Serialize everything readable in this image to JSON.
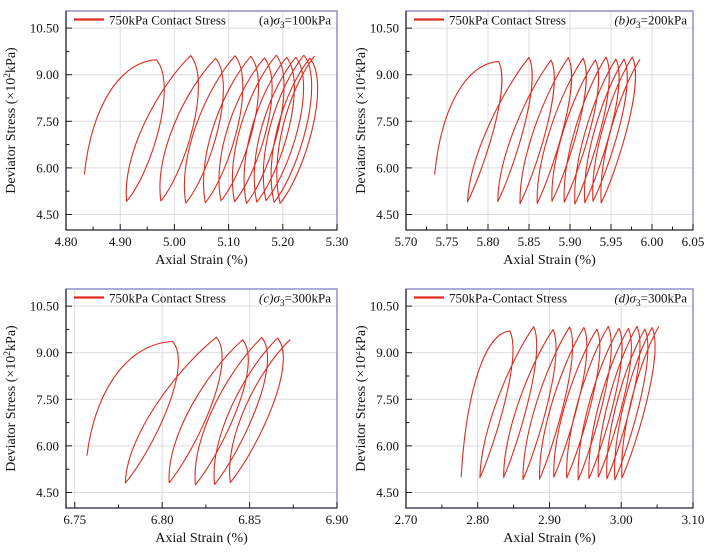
{
  "figure": {
    "background": "#ffffff",
    "colors": {
      "curve": "#dd2b20",
      "frame": "#8888c8",
      "axis": "#1c1c1c",
      "grid": "#dcdcdc",
      "text": "#111111"
    }
  },
  "chart_data": [
    {
      "id": "a",
      "type": "line",
      "legend": "750kPa Contact Stress",
      "annotation": {
        "index": "(a)",
        "index_italic": false,
        "symbol": "σ",
        "subscript": "3",
        "value": "=100kPa"
      },
      "xlabel": "Axial Strain (%)",
      "ylabel": {
        "pre": "Deviator Stress (×10",
        "sup": "2",
        "post": "kPa)"
      },
      "xlim": [
        4.8,
        5.3
      ],
      "xticks": [
        4.8,
        4.9,
        5.0,
        5.1,
        5.2,
        5.3
      ],
      "ylim": [
        4.0,
        11.05
      ],
      "yticks": [
        4.5,
        6.0,
        7.5,
        9.0,
        10.5
      ],
      "grid": true,
      "legend_position": "top-left",
      "series": [
        {
          "name": "750kPa Contact Stress",
          "color": "#dd2b20",
          "start": [
            4.834,
            5.8
          ],
          "peaks_x": [
            4.967,
            5.03,
            5.076,
            5.112,
            5.141,
            5.166,
            5.188,
            5.207,
            5.224,
            5.239,
            5.25,
            5.258
          ],
          "peak_y": 9.58,
          "trough_y": 4.9,
          "lean": 0.055,
          "loop_bulge": 0.035
        }
      ]
    },
    {
      "id": "b",
      "type": "line",
      "legend": "750kPa Contact Stress",
      "annotation": {
        "index": "(b)",
        "index_italic": true,
        "symbol": "σ",
        "subscript": "3",
        "value": "=200kPa"
      },
      "xlabel": "Axial Strain (%)",
      "ylabel": {
        "pre": "Deviator Stress (×10",
        "sup": "2",
        "post": "kPa)"
      },
      "xlim": [
        5.7,
        6.05
      ],
      "xticks": [
        5.7,
        5.75,
        5.8,
        5.85,
        5.9,
        5.95,
        6.0,
        6.05
      ],
      "ylim": [
        4.0,
        11.05
      ],
      "yticks": [
        4.5,
        6.0,
        7.5,
        9.0,
        10.5
      ],
      "grid": true,
      "legend_position": "top-left",
      "series": [
        {
          "name": "750kPa Contact Stress",
          "color": "#dd2b20",
          "start": [
            5.735,
            5.8
          ],
          "peaks_x": [
            5.813,
            5.85,
            5.877,
            5.898,
            5.916,
            5.931,
            5.944,
            5.956,
            5.966,
            5.976,
            5.985
          ],
          "peak_y": 9.52,
          "trough_y": 4.88,
          "lean": 0.038,
          "loop_bulge": 0.014
        }
      ]
    },
    {
      "id": "c",
      "type": "line",
      "legend": "750kPa Contact Stress",
      "annotation": {
        "index": "(c)",
        "index_italic": true,
        "symbol": "σ",
        "subscript": "3",
        "value": "=300kPa"
      },
      "xlabel": "Axial Strain (%)",
      "ylabel": {
        "pre": "Deviator Stress (×10",
        "sup": "2",
        "post": "kPa)"
      },
      "xlim": [
        6.745,
        6.9
      ],
      "xticks": [
        6.75,
        6.8,
        6.85,
        6.9
      ],
      "ylim": [
        4.0,
        11.05
      ],
      "yticks": [
        4.5,
        6.0,
        7.5,
        9.0,
        10.5
      ],
      "grid": true,
      "legend_position": "top-left",
      "series": [
        {
          "name": "750kPa Contact Stress",
          "color": "#dd2b20",
          "start": [
            6.757,
            5.7
          ],
          "peaks_x": [
            6.806,
            6.831,
            6.846,
            6.857,
            6.866,
            6.873
          ],
          "peak_y": 9.46,
          "trough_y": 4.78,
          "lean": 0.027,
          "loop_bulge": 0.011
        }
      ]
    },
    {
      "id": "d",
      "type": "line",
      "legend": "750kPa-Contact Stress",
      "annotation": {
        "index": "(d)",
        "index_italic": true,
        "symbol": "σ",
        "subscript": "3",
        "value": "=300kPa"
      },
      "xlabel": "Axial Strain (%)",
      "ylabel": {
        "pre": "Deviator Stress (×10",
        "sup": "2",
        "post": "kPa)"
      },
      "xlim": [
        2.7,
        3.1
      ],
      "xticks": [
        2.7,
        2.8,
        2.9,
        3.0,
        3.1
      ],
      "ylim": [
        4.0,
        11.05
      ],
      "yticks": [
        4.5,
        6.0,
        7.5,
        9.0,
        10.5
      ],
      "grid": true,
      "legend_position": "top-left",
      "series": [
        {
          "name": "750kPa-Contact Stress",
          "color": "#dd2b20",
          "start": [
            2.777,
            5.0
          ],
          "peaks_x": [
            2.845,
            2.878,
            2.905,
            2.928,
            2.948,
            2.966,
            2.982,
            2.997,
            3.01,
            3.022,
            3.033,
            3.043,
            3.052
          ],
          "peak_y": 9.8,
          "trough_y": 4.95,
          "lean": 0.042,
          "loop_bulge": 0.015
        }
      ]
    }
  ]
}
